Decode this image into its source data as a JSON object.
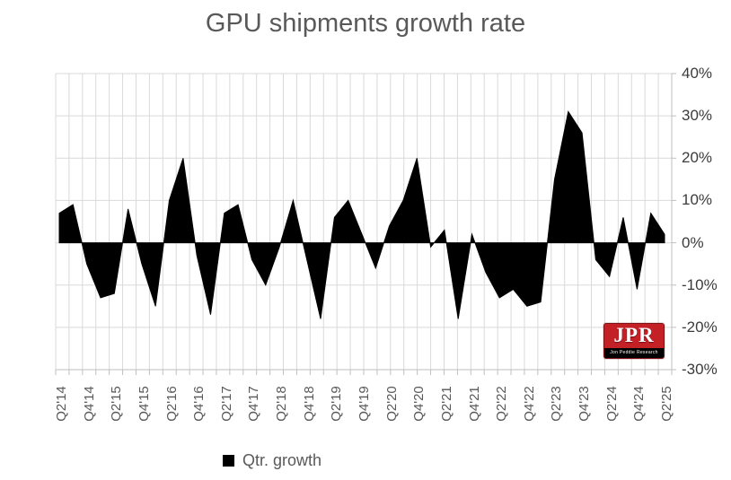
{
  "title": "GPU shipments growth rate",
  "legend": {
    "label": "Qtr. growth",
    "swatch_color": "#000000"
  },
  "logo": {
    "text": "JPR",
    "subtext": "Jon Peddie Research",
    "bg_color": "#c42127"
  },
  "colors": {
    "series_fill": "#000000",
    "gridline": "#d9d9d9",
    "axis_line": "#bfbfbf",
    "title_text": "#595959",
    "x_label_text": "#595959",
    "y_label_text": "#3b3b3b"
  },
  "chart_data": {
    "type": "area",
    "title": "GPU shipments growth rate",
    "series_name": "Qtr. growth",
    "categories": [
      "Q2'14",
      "Q3'14",
      "Q4'14",
      "Q1'15",
      "Q2'15",
      "Q3'15",
      "Q4'15",
      "Q1'16",
      "Q2'16",
      "Q3'16",
      "Q4'16",
      "Q1'17",
      "Q2'17",
      "Q3'17",
      "Q4'17",
      "Q1'18",
      "Q2'18",
      "Q3'18",
      "Q4'18",
      "Q1'19",
      "Q2'19",
      "Q3'19",
      "Q4'19",
      "Q1'20",
      "Q2'20",
      "Q3'20",
      "Q4'20",
      "Q1'21",
      "Q2'21",
      "Q3'21",
      "Q4'21",
      "Q1'22",
      "Q2'22",
      "Q3'22",
      "Q4'22",
      "Q1'23",
      "Q2'23",
      "Q3'23",
      "Q4'23",
      "Q1'24",
      "Q2'24",
      "Q3'24",
      "Q4'24",
      "Q1'25",
      "Q2'25"
    ],
    "values": [
      7,
      9,
      -5,
      -13,
      -12,
      8,
      -5,
      -15,
      10,
      20,
      -3,
      -17,
      7,
      9,
      -4,
      -10,
      -1,
      10,
      -4,
      -18,
      6,
      10,
      2,
      -6,
      4,
      10,
      20,
      -1,
      3,
      -18,
      2,
      -7,
      -13,
      -11,
      -15,
      -14,
      15,
      31,
      26,
      -4,
      -8,
      6,
      -11,
      7,
      2
    ],
    "x_tick_labels": [
      "Q2'14",
      "Q4'14",
      "Q2'15",
      "Q4'15",
      "Q2'16",
      "Q4'16",
      "Q2'17",
      "Q4'17",
      "Q2'18",
      "Q4'18",
      "Q2'19",
      "Q4'19",
      "Q2'20",
      "Q4'20",
      "Q2'21",
      "Q4'21",
      "Q2'22",
      "Q4'22",
      "Q2'23",
      "Q4'23",
      "Q2'24",
      "Q4'24",
      "Q2'25"
    ],
    "x_tick_step": 2,
    "y_tick_labels": [
      "40%",
      "30%",
      "20%",
      "10%",
      "0%",
      "-10%",
      "-20%",
      "-30%"
    ],
    "y_tick_values": [
      40,
      30,
      20,
      10,
      0,
      -10,
      -20,
      -30
    ],
    "ylim": [
      -30,
      40
    ],
    "xlabel": "",
    "ylabel": "",
    "grid": true,
    "y_axis_side": "right",
    "legend_position": "bottom"
  }
}
